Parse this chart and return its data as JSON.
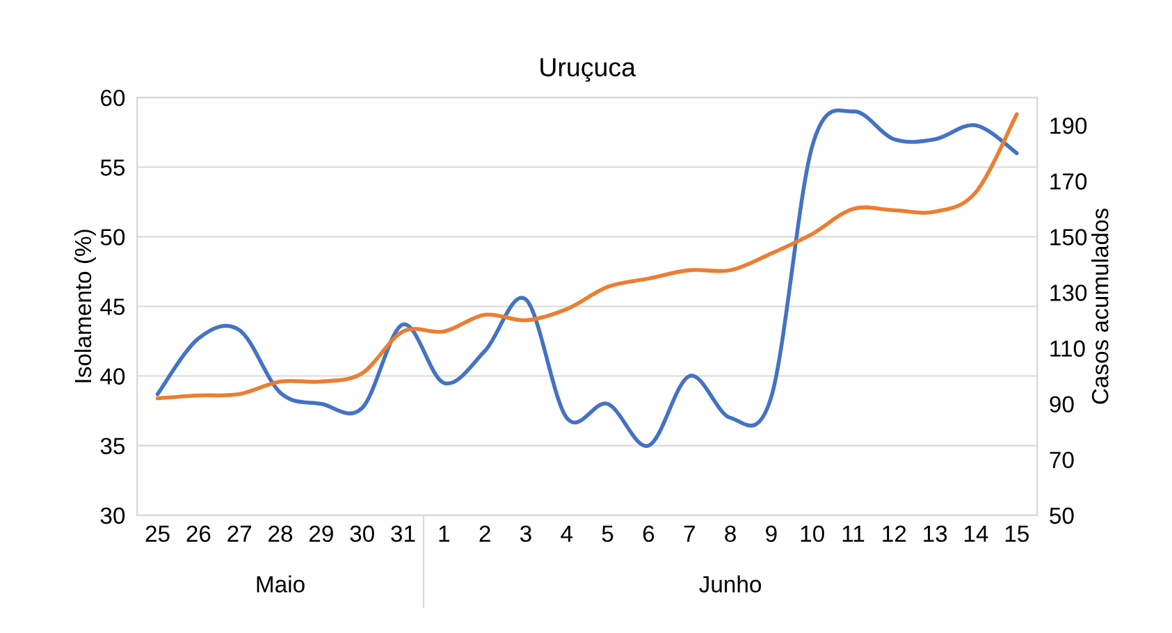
{
  "chart_data": {
    "type": "line",
    "title": "Uruçuca",
    "ylabel": "Isolamento (%)",
    "y2label": "Casos acumulados",
    "categories": [
      "25",
      "26",
      "27",
      "28",
      "29",
      "30",
      "31",
      "1",
      "2",
      "3",
      "4",
      "5",
      "6",
      "7",
      "8",
      "9",
      "10",
      "11",
      "12",
      "13",
      "14",
      "15"
    ],
    "series": [
      {
        "color": "#4472c4",
        "values": [
          38.7,
          42.7,
          43.3,
          38.8,
          38.0,
          37.7,
          43.7,
          39.5,
          41.8,
          45.5,
          37.0,
          38.0,
          35.0,
          40.0,
          37.0,
          38.5,
          56.5,
          59.0,
          57.0,
          57.0,
          58.0,
          56.0
        ]
      },
      {
        "color": "#ed7d31",
        "axis": "y2",
        "values": [
          92,
          93,
          93.5,
          98,
          98,
          101,
          116,
          116,
          122,
          120,
          124,
          132,
          135,
          138,
          138,
          144,
          151,
          160,
          159.5,
          159,
          166,
          194
        ]
      }
    ],
    "ylim": [
      30,
      60
    ],
    "yticks": [
      30,
      35,
      40,
      45,
      50,
      55,
      60
    ],
    "y2lim": [
      50,
      200
    ],
    "y2ticks": [
      50,
      70,
      90,
      110,
      130,
      150,
      170,
      190
    ],
    "grid": "y",
    "legend": false,
    "marker": "none",
    "line_style": "solid",
    "annotations": [
      "Maio",
      "Junho"
    ]
  }
}
